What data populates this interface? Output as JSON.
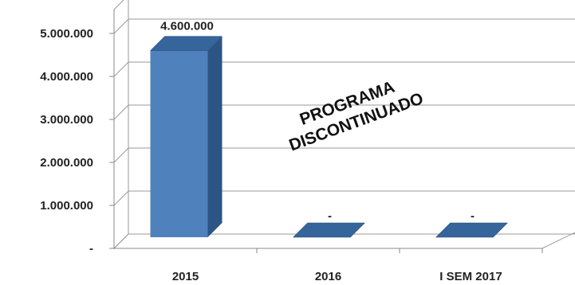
{
  "chart_data": {
    "type": "bar",
    "categories": [
      "2015",
      "2016",
      "I SEM 2017"
    ],
    "values": [
      4600000,
      0,
      0
    ],
    "data_labels": [
      "4.600.000",
      "-",
      "-"
    ],
    "y_ticks": [
      0,
      1000000,
      2000000,
      3000000,
      4000000,
      5000000
    ],
    "y_tick_labels": [
      "-",
      "1.000.000",
      "2.000.000",
      "3.000.000",
      "4.000.000",
      "5.000.000"
    ],
    "ylim": [
      0,
      5000000
    ],
    "grid": true,
    "annotation": [
      "PROGRAMA",
      "DISCONTINUADO"
    ],
    "bar_color": "#4f81bd",
    "bar_side_color": "#2c5585",
    "bar_top_color": "#35659a"
  }
}
